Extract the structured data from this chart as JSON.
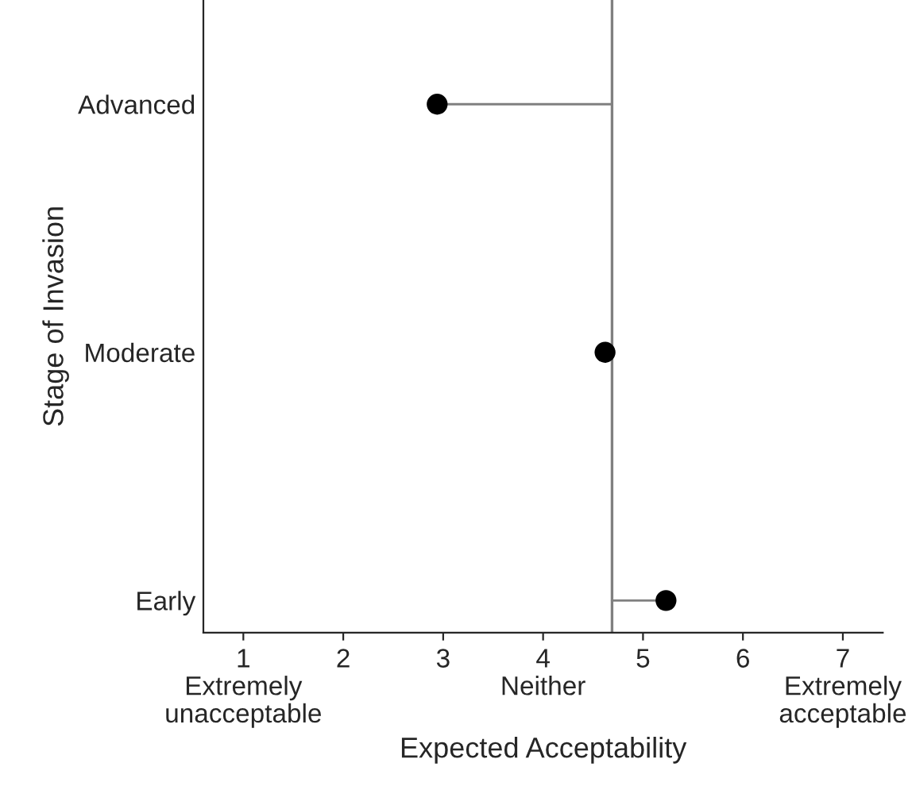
{
  "chart_data": {
    "type": "lollipop",
    "orientation": "horizontal",
    "xlabel": "Expected Acceptability",
    "ylabel": "Stage of Invasion",
    "categories": [
      "Advanced",
      "Moderate",
      "Early"
    ],
    "series": [
      {
        "color": "#000000",
        "values": [
          2.94,
          4.62,
          5.23
        ],
        "errors": [
          [
            2.94,
            4.69
          ],
          [
            4.62,
            4.69
          ],
          [
            4.69,
            5.23
          ]
        ]
      }
    ],
    "xlim": [
      0.6,
      7.4
    ],
    "xticks": [
      {
        "value": 1,
        "label": "1\nExtremely\nunacceptable"
      },
      2,
      3,
      {
        "value": 4,
        "label": "4\nNeither"
      },
      5,
      6,
      {
        "value": 7,
        "label": "7\nExtremely\nacceptable"
      }
    ],
    "ref_lines": [
      {
        "axis": "x",
        "value": 4.69,
        "color": "#808080"
      }
    ],
    "marker": "circle",
    "grid": false,
    "legend": false
  }
}
